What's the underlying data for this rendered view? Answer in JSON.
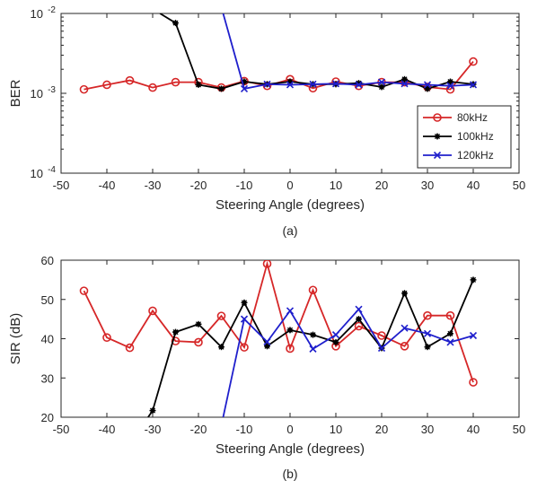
{
  "chart_data": [
    {
      "type": "line",
      "title": "",
      "xlabel": "Steering Angle (degrees)",
      "ylabel": "BER",
      "caption": "(a)",
      "yscale": "log",
      "xlim": [
        -50,
        50
      ],
      "ylim": [
        0.0001,
        0.01
      ],
      "xticks": [
        -50,
        -40,
        -30,
        -20,
        -10,
        0,
        10,
        20,
        30,
        40,
        50
      ],
      "xtick_labels": [
        "-50",
        "-40",
        "-30",
        "-20",
        "-10",
        "0",
        "10",
        "20",
        "30",
        "40",
        "50"
      ],
      "ytick_labels": [
        {
          "base": "10",
          "exp": "-4",
          "value": 0.0001
        },
        {
          "base": "10",
          "exp": "-3",
          "value": 0.001
        },
        {
          "base": "10",
          "exp": "-2",
          "value": 0.01
        }
      ],
      "legend_position": "right",
      "series": [
        {
          "name": "80kHz",
          "color": "#d62728",
          "marker": "circle",
          "x": [
            -45,
            -40,
            -35,
            -30,
            -25,
            -20,
            -15,
            -10,
            -5,
            0,
            5,
            10,
            15,
            20,
            25,
            30,
            35,
            40
          ],
          "y": [
            0.00112,
            0.00128,
            0.00145,
            0.00118,
            0.00138,
            0.00138,
            0.00118,
            0.00142,
            0.00124,
            0.0015,
            0.00116,
            0.0014,
            0.00124,
            0.00138,
            0.00138,
            0.0012,
            0.00112,
            0.0025
          ]
        },
        {
          "name": "100kHz",
          "color": "#000000",
          "marker": "asterisk",
          "x": [
            -28.4,
            -25,
            -20,
            -15,
            -10,
            -5,
            0,
            5,
            10,
            15,
            20,
            25,
            30,
            35,
            40
          ],
          "y": [
            0.01,
            0.0076,
            0.00128,
            0.00114,
            0.0014,
            0.0013,
            0.0014,
            0.0013,
            0.0013,
            0.00134,
            0.0012,
            0.0015,
            0.00114,
            0.0014,
            0.0013
          ]
        },
        {
          "name": "120kHz",
          "color": "#1f1fcc",
          "marker": "x",
          "x": [
            -14.6,
            -10,
            -5,
            0,
            5,
            10,
            15,
            20,
            25,
            30,
            35,
            40
          ],
          "y": [
            0.01,
            0.00114,
            0.0013,
            0.00128,
            0.0013,
            0.00132,
            0.00128,
            0.00138,
            0.00132,
            0.00128,
            0.00124,
            0.00128
          ]
        }
      ]
    },
    {
      "type": "line",
      "title": "",
      "xlabel": "Steering Angle (degrees)",
      "ylabel": "SIR (dB)",
      "caption": "(b)",
      "xlim": [
        -50,
        50
      ],
      "ylim": [
        20,
        60
      ],
      "xticks": [
        -50,
        -40,
        -30,
        -20,
        -10,
        0,
        10,
        20,
        30,
        40,
        50
      ],
      "xtick_labels": [
        "-50",
        "-40",
        "-30",
        "-20",
        "-10",
        "0",
        "10",
        "20",
        "30",
        "40",
        "50"
      ],
      "yticks": [
        20,
        30,
        40,
        50,
        60
      ],
      "ytick_labels": [
        "20",
        "30",
        "40",
        "50",
        "60"
      ],
      "series": [
        {
          "color": "#d62728",
          "marker": "circle",
          "x": [
            -45,
            -40,
            -35,
            -30,
            -25,
            -20,
            -15,
            -10,
            -5,
            0,
            5,
            10,
            15,
            20,
            25,
            30,
            35,
            40
          ],
          "y": [
            52.2,
            40.3,
            37.7,
            47.1,
            39.4,
            39.1,
            45.8,
            37.8,
            59.1,
            37.5,
            52.4,
            38.1,
            43.2,
            40.8,
            38.1,
            45.9,
            45.9,
            28.9
          ]
        },
        {
          "color": "#000000",
          "marker": "asterisk",
          "x": [
            -31,
            -30,
            -25,
            -20,
            -15,
            -10,
            -5,
            0,
            5,
            10,
            15,
            20,
            25,
            30,
            35,
            40
          ],
          "y": [
            20,
            21.7,
            41.7,
            43.7,
            37.9,
            49.2,
            38.1,
            42.2,
            41.0,
            39.1,
            45.0,
            37.6,
            51.6,
            37.9,
            41.3,
            55.0
          ]
        },
        {
          "color": "#1f1fcc",
          "marker": "x",
          "x": [
            -14.6,
            -10,
            -5,
            0,
            5,
            10,
            15,
            20,
            25,
            30,
            35,
            40
          ],
          "y": [
            20,
            45.0,
            39.2,
            47.1,
            37.4,
            41.0,
            47.5,
            37.6,
            42.7,
            41.3,
            39.1,
            40.8
          ]
        }
      ]
    }
  ]
}
